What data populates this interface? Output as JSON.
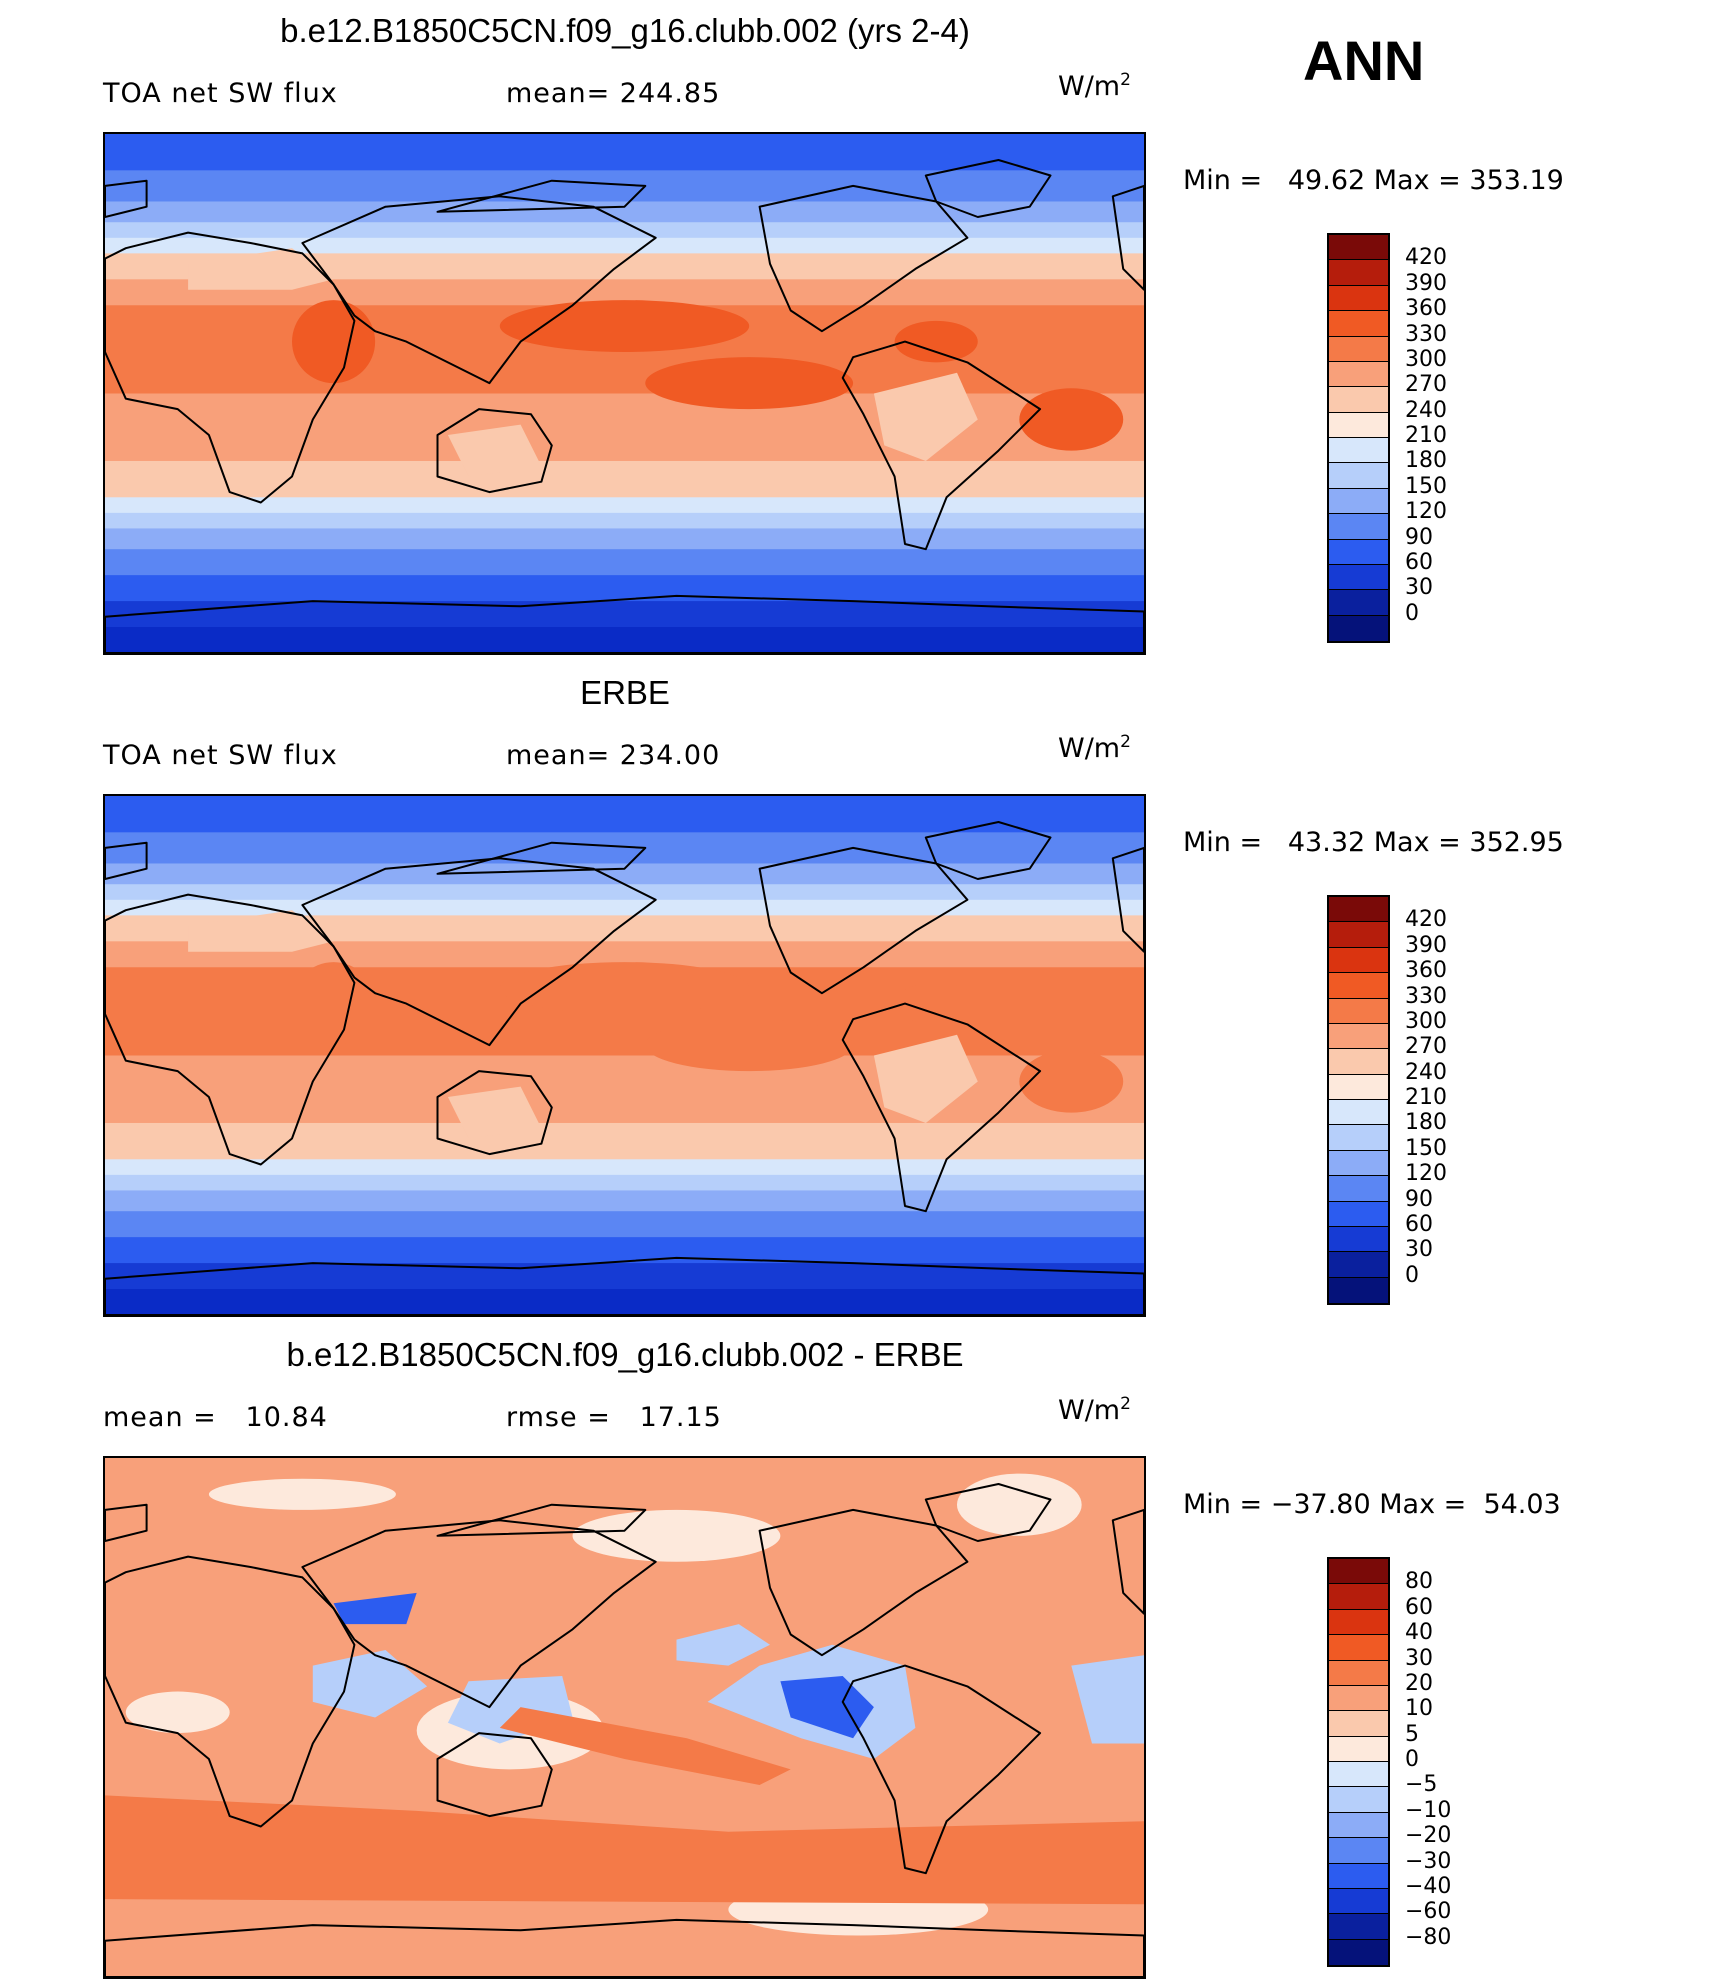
{
  "season": "ANN",
  "units_base": "W/m",
  "units_exp": "2",
  "panels": [
    {
      "title": "b.e12.B1850C5CN.f09_g16.clubb.002 (yrs 2-4)",
      "left_label": "TOA net SW flux",
      "stat_label": "mean=",
      "stat_value": "244.85",
      "min_label": "Min =",
      "min_value": "49.62",
      "max_label": "Max =",
      "max_value": "353.19",
      "levels": [
        "420",
        "390",
        "360",
        "330",
        "300",
        "270",
        "240",
        "210",
        "180",
        "150",
        "120",
        "90",
        "60",
        "30",
        "0"
      ]
    },
    {
      "title": "ERBE",
      "left_label": "TOA net SW flux",
      "stat_label": "mean=",
      "stat_value": "234.00",
      "min_label": "Min =",
      "min_value": "43.32",
      "max_label": "Max =",
      "max_value": "352.95",
      "levels": [
        "420",
        "390",
        "360",
        "330",
        "300",
        "270",
        "240",
        "210",
        "180",
        "150",
        "120",
        "90",
        "60",
        "30",
        "0"
      ]
    },
    {
      "title": "b.e12.B1850C5CN.f09_g16.clubb.002 - ERBE",
      "left_label": "mean =",
      "left_value": "10.84",
      "stat_label": "rmse =",
      "stat_value": "17.15",
      "min_label": "Min =",
      "min_value": "−37.80",
      "max_label": "Max =",
      "max_value": "54.03",
      "levels": [
        "80",
        "60",
        "40",
        "30",
        "20",
        "10",
        "5",
        "0",
        "−5",
        "−10",
        "−20",
        "−30",
        "−40",
        "−60",
        "−80"
      ]
    }
  ],
  "colorbar_colors": [
    "#7a0a08",
    "#b51d0c",
    "#da3410",
    "#f05a24",
    "#f47a48",
    "#f8a07a",
    "#fac9ad",
    "#fde9dc",
    "#d7e7fb",
    "#b6cffa",
    "#8cacf7",
    "#5b86f3",
    "#2c5cf0",
    "#163bd4",
    "#0a209e",
    "#05127a"
  ],
  "map_colors": {
    "polar": "#163bd4",
    "polar_deep": "#0a2bc6",
    "high_lat": "#2c5cf0",
    "mid_lat": "#5b86f3",
    "sub_polar": "#8cacf7",
    "lat_45": "#b6cffa",
    "lat_35": "#d7e7fb",
    "subtrop": "#fac9ad",
    "tropics": "#f8a07a",
    "tropics_warm": "#f47a48",
    "max": "#f05a24",
    "diff_bg": "#f8a07a",
    "diff_neg": "#b6cffa",
    "diff_neg_strong": "#2c5cf0",
    "diff_pos": "#f47a48",
    "diff_pale": "#fde9dc",
    "coast": "#000000"
  }
}
